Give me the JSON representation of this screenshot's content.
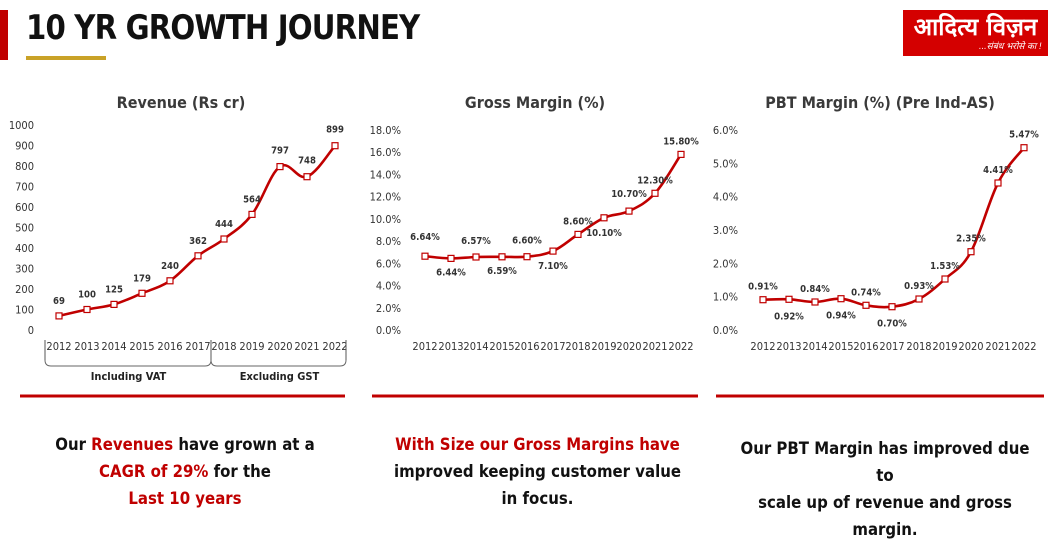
{
  "page": {
    "title": "10 YR GROWTH JOURNEY",
    "logo_main": "आदित्य विज़न",
    "logo_tagline": "...संबंध भरोसे का !"
  },
  "colors": {
    "accent": "#c00000",
    "line": "#c00000",
    "underline": "#c9a227",
    "axis": "#555555"
  },
  "chart_data": [
    {
      "type": "line",
      "title": "Revenue (Rs cr)",
      "categories": [
        "2012",
        "2013",
        "2014",
        "2015",
        "2016",
        "2017",
        "2018",
        "2019",
        "2020",
        "2021",
        "2022"
      ],
      "values": [
        69,
        100,
        125,
        179,
        240,
        362,
        444,
        564,
        797,
        748,
        899
      ],
      "labels": [
        "69",
        "100",
        "125",
        "179",
        "240",
        "362",
        "444",
        "564",
        "797",
        "748",
        "899"
      ],
      "ylim": [
        0,
        1000
      ],
      "yticks": [
        "0",
        "100",
        "200",
        "300",
        "400",
        "500",
        "600",
        "700",
        "800",
        "900",
        "1000"
      ],
      "groups": [
        {
          "label": "Including VAT",
          "from": 0,
          "to": 5
        },
        {
          "label": "Excluding GST",
          "from": 6,
          "to": 10
        }
      ]
    },
    {
      "type": "line",
      "title": "Gross Margin (%)",
      "categories": [
        "2012",
        "2013",
        "2014",
        "2015",
        "2016",
        "2017",
        "2018",
        "2019",
        "2020",
        "2021",
        "2022"
      ],
      "values": [
        6.64,
        6.44,
        6.57,
        6.59,
        6.6,
        7.1,
        8.6,
        10.1,
        10.7,
        12.3,
        15.8
      ],
      "labels": [
        "6.64%",
        "6.44%",
        "6.57%",
        "6.59%",
        "6.60%",
        "7.10%",
        "8.60%",
        "10.10%",
        "10.70%",
        "12.30%",
        "15.80%"
      ],
      "ylim": [
        0,
        18
      ],
      "yticks": [
        "0.0%",
        "2.0%",
        "4.0%",
        "6.0%",
        "8.0%",
        "10.0%",
        "12.0%",
        "14.0%",
        "16.0%",
        "18.0%"
      ]
    },
    {
      "type": "line",
      "title": "PBT Margin (%) (Pre Ind-AS)",
      "categories": [
        "2012",
        "2013",
        "2014",
        "2015",
        "2016",
        "2017",
        "2018",
        "2019",
        "2020",
        "2021",
        "2022"
      ],
      "values": [
        0.91,
        0.92,
        0.84,
        0.94,
        0.74,
        0.7,
        0.93,
        1.53,
        2.35,
        4.41,
        5.47
      ],
      "labels": [
        "0.91%",
        "0.92%",
        "0.84%",
        "0.94%",
        "0.74%",
        "0.70%",
        "0.93%",
        "1.53%",
        "2.35%",
        "4.41%",
        "5.47%"
      ],
      "ylim": [
        0,
        6
      ],
      "yticks": [
        "0.0%",
        "1.0%",
        "2.0%",
        "3.0%",
        "4.0%",
        "5.0%",
        "6.0%"
      ]
    }
  ],
  "captions": {
    "revenue": {
      "p1": "Our ",
      "p2": "Revenues",
      "p3": " have grown at a",
      "p4": "CAGR of 29%",
      "p5": " for the",
      "p6": "Last 10 years"
    },
    "gross": {
      "p1": "With Size our Gross Margins have",
      "p2": "improved keeping customer value",
      "p3": "in focus."
    },
    "pbt": {
      "p1": "Our PBT Margin has improved due to",
      "p2": "scale up of revenue and gross",
      "p3": "margin."
    }
  }
}
